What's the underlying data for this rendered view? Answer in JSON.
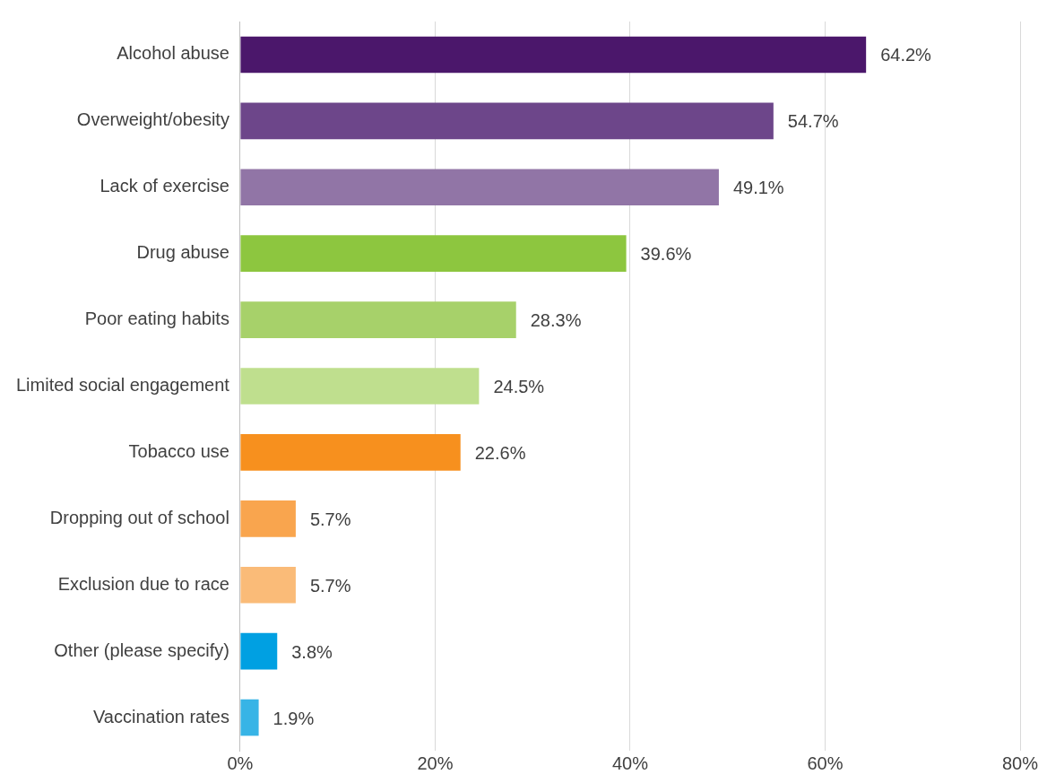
{
  "chart_data": {
    "type": "bar",
    "orientation": "horizontal",
    "categories": [
      "Alcohol abuse",
      "Overweight/obesity",
      "Lack of exercise",
      "Drug abuse",
      "Poor eating habits",
      "Limited social engagement",
      "Tobacco use",
      "Dropping out of school",
      "Exclusion due to race",
      "Other (please specify)",
      "Vaccination rates"
    ],
    "values": [
      64.2,
      54.7,
      49.1,
      39.6,
      28.3,
      24.5,
      22.6,
      5.7,
      5.7,
      3.8,
      1.9
    ],
    "colors": [
      "#4b176b",
      "#6d468a",
      "#9175a6",
      "#8dc63f",
      "#a7d16a",
      "#bfdf8e",
      "#f7901e",
      "#f9a54e",
      "#fabb78",
      "#00a0e2",
      "#37b4e6"
    ],
    "value_labels": [
      "64.2%",
      "54.7%",
      "49.1%",
      "39.6%",
      "28.3%",
      "24.5%",
      "22.6%",
      "5.7%",
      "5.7%",
      "3.8%",
      "1.9%"
    ],
    "xlim": [
      0,
      80
    ],
    "xticks": [
      {
        "value": 0,
        "label": "0%"
      },
      {
        "value": 20,
        "label": "20%"
      },
      {
        "value": 40,
        "label": "40%"
      },
      {
        "value": 60,
        "label": "60%"
      },
      {
        "value": 80,
        "label": "80%"
      }
    ],
    "grid": "x",
    "legend": false
  }
}
